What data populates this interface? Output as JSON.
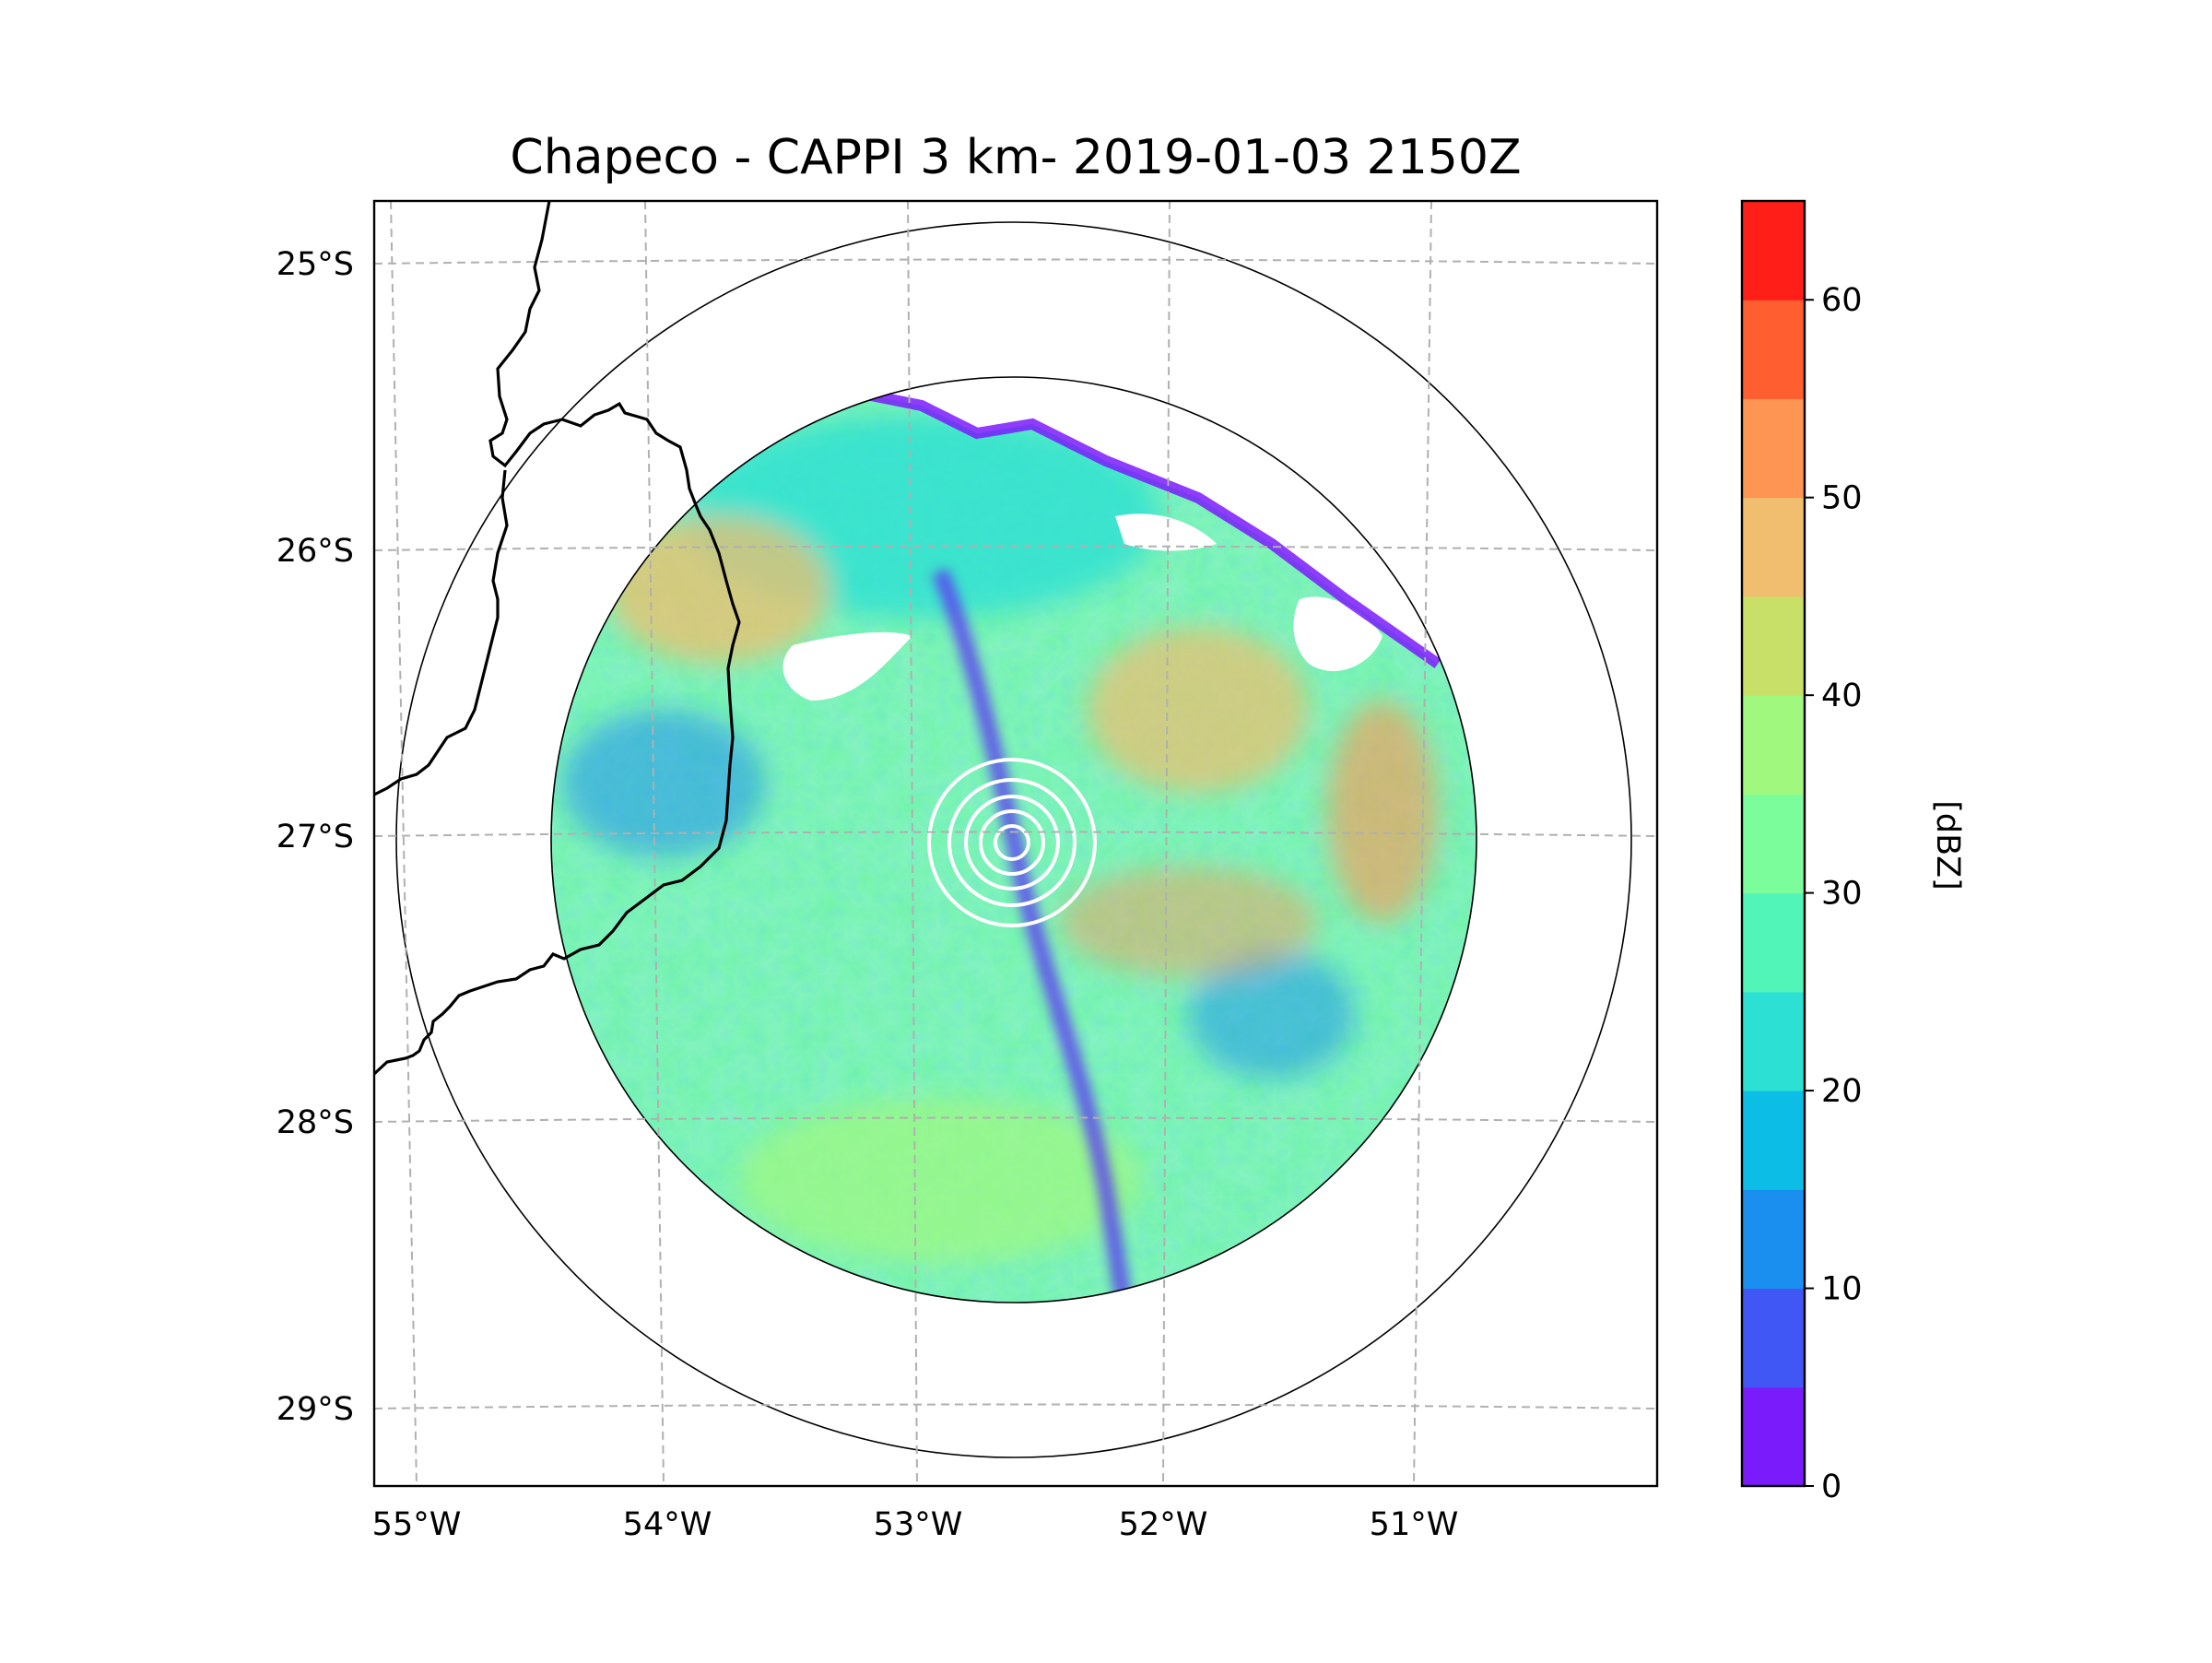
{
  "title": "Chapeco - CAPPI 3 km- 2019-01-03 2150Z",
  "map": {
    "lat_ticks": [
      "25°S",
      "26°S",
      "27°S",
      "28°S",
      "29°S"
    ],
    "lon_ticks": [
      "55°W",
      "54°W",
      "53°W",
      "52°W",
      "51°W"
    ],
    "grid_style": "dashed",
    "range_rings": 2,
    "radar_site": "Chapeco"
  },
  "colorbar": {
    "label": "[dBZ]",
    "min": 0,
    "max": 65,
    "step": 5,
    "tick_values": [
      "0",
      "10",
      "20",
      "30",
      "40",
      "50",
      "60"
    ],
    "colors": [
      "#7a1bfb",
      "#4057f5",
      "#1b8ff0",
      "#0cbde6",
      "#2ce0d3",
      "#52f5b8",
      "#7bfd9b",
      "#a0f87f",
      "#c8e068",
      "#f0be6e",
      "#ff9552",
      "#ff5e30",
      "#ff1e18"
    ]
  },
  "colors": {
    "grid": "#b0b0b0",
    "coast": "#000000",
    "echo_base": "#73f5a6"
  }
}
